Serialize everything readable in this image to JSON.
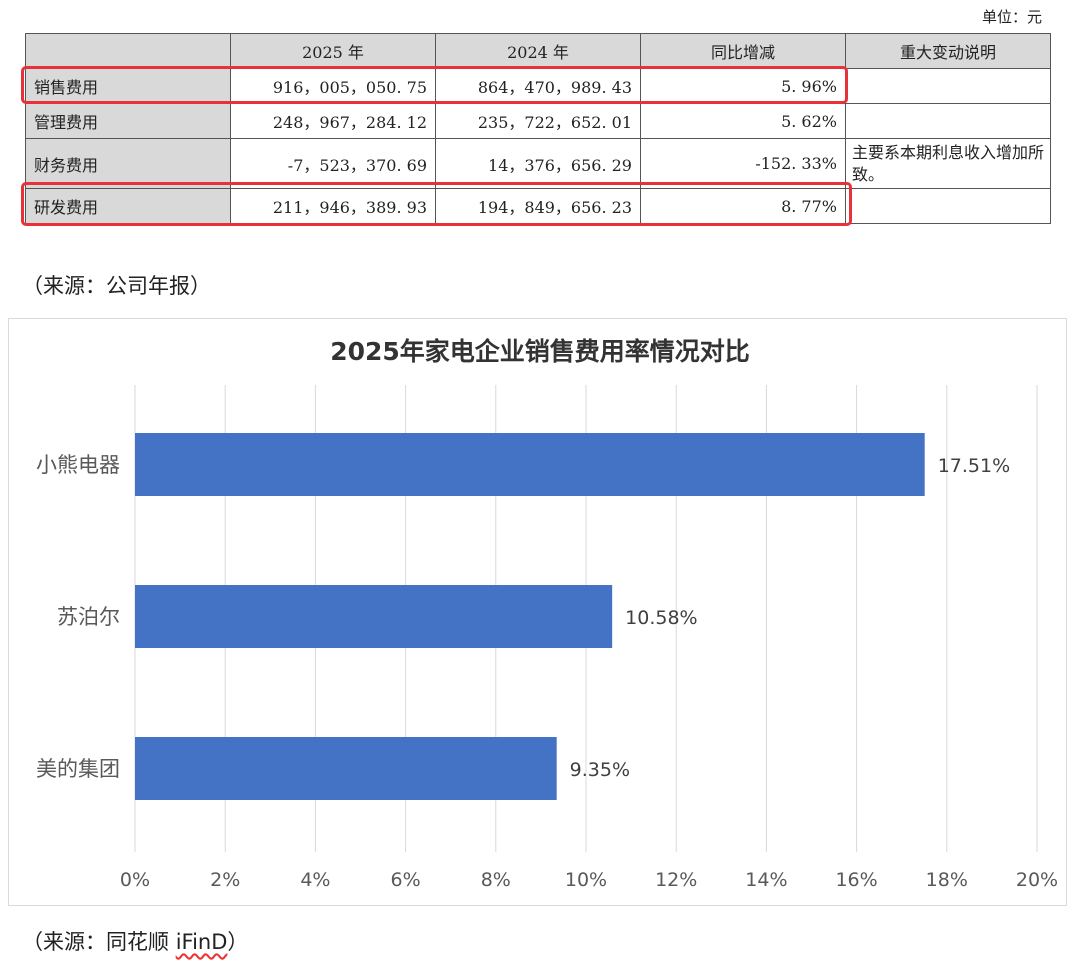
{
  "table": {
    "unit": "单位：元",
    "headers": [
      "",
      "2025 年",
      "2024 年",
      "同比增减",
      "重大变动说明"
    ],
    "rows": [
      [
        "销售费用",
        "916，005，050. 75",
        "864，470，989. 43",
        "5. 96%",
        ""
      ],
      [
        "管理费用",
        "248，967，284. 12",
        "235，722，652. 01",
        "5. 62%",
        ""
      ],
      [
        "财务费用",
        "-7，523，370. 69",
        "14，376，656. 29",
        "-152. 33%",
        "主要系本期利息收入增加所致。"
      ],
      [
        "研发费用",
        "211，946，389. 93",
        "194，849，656. 23",
        "8. 77%",
        ""
      ]
    ],
    "highlight_color": "#e8323a"
  },
  "source1": "（来源：公司年报）",
  "source2_prefix": "（来源：同花顺 ",
  "source2_word": "iFinD",
  "source2_suffix": "）",
  "chart_data": {
    "type": "bar",
    "orientation": "horizontal",
    "title": "2025年家电企业销售费用率情况对比",
    "categories": [
      "小熊电器",
      "苏泊尔",
      "美的集团"
    ],
    "values": [
      17.51,
      10.58,
      9.35
    ],
    "data_labels": [
      "17.51%",
      "10.58%",
      "9.35%"
    ],
    "xlim": [
      0,
      20
    ],
    "xticks": [
      "0%",
      "2%",
      "4%",
      "6%",
      "8%",
      "10%",
      "12%",
      "14%",
      "16%",
      "18%",
      "20%"
    ],
    "grid": true,
    "bar_color": "#4472c4"
  }
}
